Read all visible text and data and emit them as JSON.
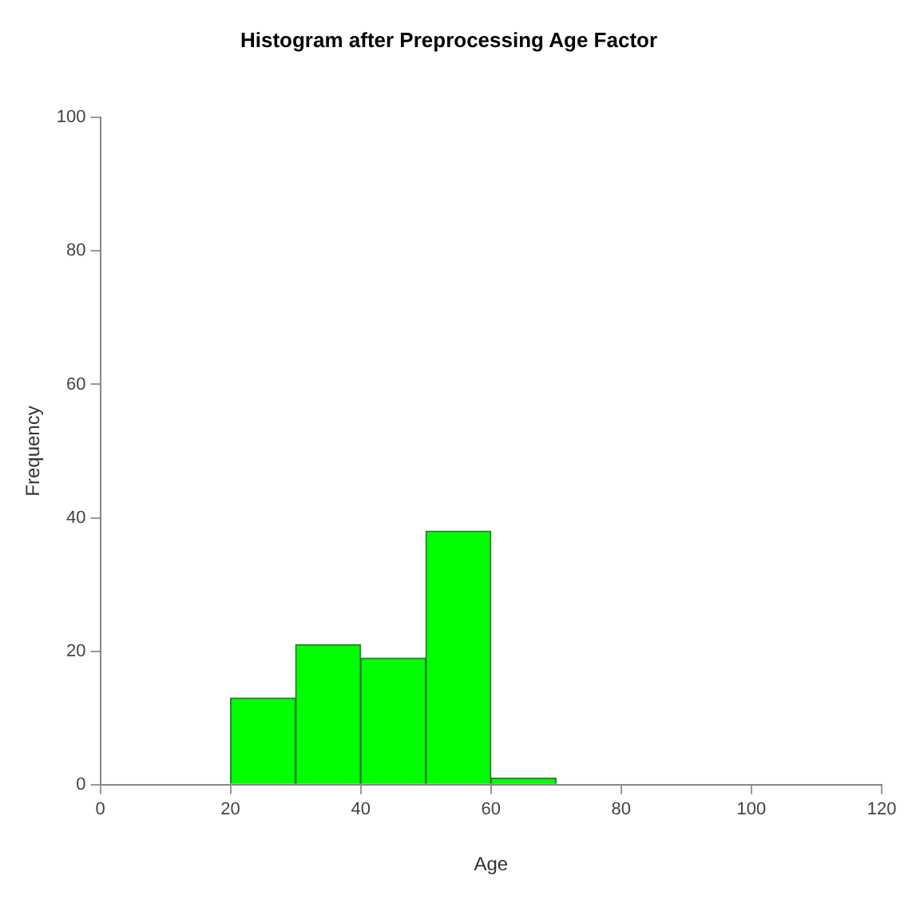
{
  "chart_data": {
    "type": "histogram",
    "title": "Histogram after Preprocessing Age Factor",
    "xlabel": "Age",
    "ylabel": "Frequency",
    "bins": [
      20,
      30,
      40,
      50,
      60,
      70
    ],
    "values": [
      13,
      21,
      19,
      38,
      1
    ],
    "color": "#00ff00",
    "xlim": [
      0,
      120
    ],
    "xticks": [
      0,
      20,
      40,
      60,
      80,
      100,
      120
    ],
    "ylim": [
      0,
      100
    ],
    "yticks": [
      0,
      20,
      40,
      60,
      80,
      100
    ],
    "grid": false,
    "legend": false
  }
}
